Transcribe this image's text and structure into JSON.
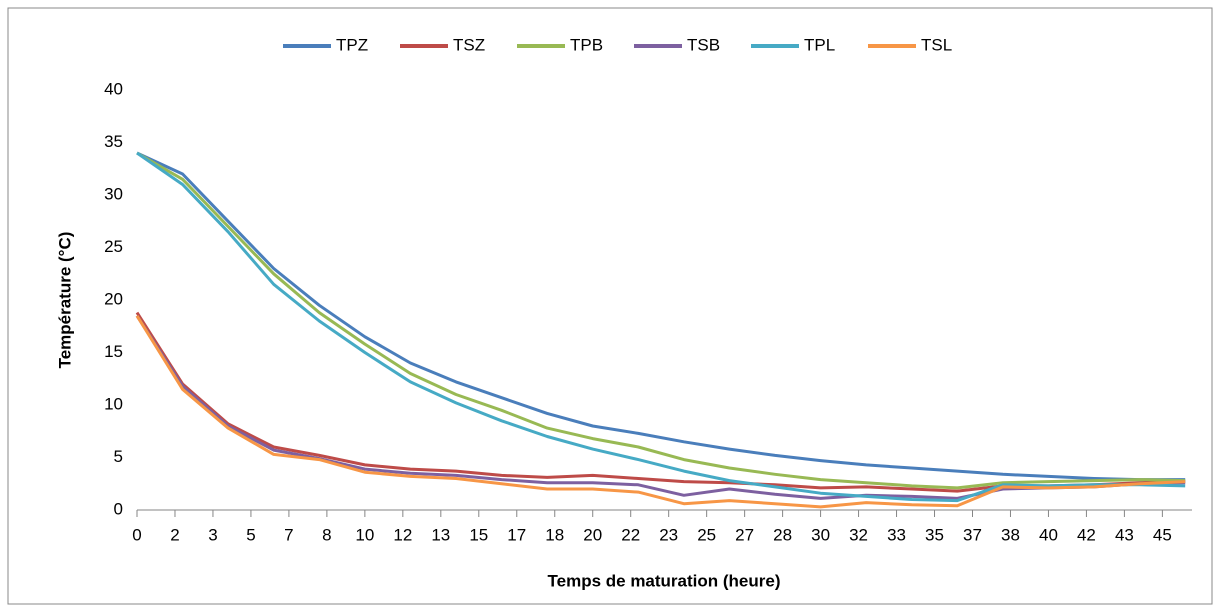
{
  "chart_data": {
    "type": "line",
    "x_label": "Temps de maturation (heure)",
    "y_label": "Température (°C)",
    "x": [
      0,
      2,
      4,
      6,
      8,
      10,
      12,
      14,
      16,
      18,
      20,
      22,
      24,
      26,
      28,
      30,
      32,
      34,
      36,
      38,
      40,
      42,
      44,
      46
    ],
    "series": [
      {
        "name": "TPZ",
        "color": "#4a7ebb",
        "values": [
          34,
          32,
          27.5,
          23,
          19.5,
          16.5,
          14,
          12.2,
          10.7,
          9.2,
          8,
          7.3,
          6.5,
          5.8,
          5.2,
          4.7,
          4.3,
          4,
          3.7,
          3.4,
          3.2,
          3,
          2.9,
          2.9
        ]
      },
      {
        "name": "TSZ",
        "color": "#be4b48",
        "values": [
          18.8,
          12,
          8.2,
          6,
          5.2,
          4.3,
          3.9,
          3.7,
          3.3,
          3.1,
          3.3,
          3,
          2.7,
          2.6,
          2.4,
          2.1,
          2.2,
          2,
          1.8,
          2.3,
          2.3,
          2.4,
          2.6,
          2.7
        ]
      },
      {
        "name": "TPB",
        "color": "#98b954",
        "values": [
          34,
          31.5,
          27,
          22.5,
          18.8,
          15.8,
          13,
          11,
          9.5,
          7.8,
          6.8,
          6,
          4.8,
          4,
          3.4,
          2.9,
          2.6,
          2.3,
          2.1,
          2.6,
          2.7,
          2.8,
          2.9,
          2.8
        ]
      },
      {
        "name": "TSB",
        "color": "#7d60a0",
        "values": [
          18.5,
          11.8,
          8,
          5.7,
          4.9,
          3.9,
          3.5,
          3.3,
          2.9,
          2.6,
          2.6,
          2.4,
          1.4,
          2,
          1.5,
          1.1,
          1.4,
          1.3,
          1.1,
          2,
          2.1,
          2.2,
          2.5,
          2.6
        ]
      },
      {
        "name": "TPL",
        "color": "#46aac5",
        "values": [
          34,
          31,
          26.5,
          21.5,
          18,
          15,
          12.2,
          10.2,
          8.5,
          7,
          5.8,
          4.8,
          3.7,
          2.8,
          2.2,
          1.6,
          1.3,
          1,
          0.9,
          2.4,
          2.3,
          2.4,
          2.4,
          2.3
        ]
      },
      {
        "name": "TSL",
        "color": "#f79646",
        "values": [
          18.5,
          11.5,
          7.8,
          5.3,
          4.8,
          3.6,
          3.2,
          3,
          2.5,
          2,
          2,
          1.7,
          0.6,
          0.9,
          0.6,
          0.3,
          0.7,
          0.5,
          0.4,
          2.2,
          2.1,
          2.2,
          2.5,
          2.7
        ]
      }
    ],
    "xlim": [
      0,
      46.3
    ],
    "xticks": [
      0,
      {
        "value": 1.6667,
        "label": "2"
      },
      {
        "value": 3.3333,
        "label": "3"
      },
      5,
      {
        "value": 6.6667,
        "label": "7"
      },
      {
        "value": 8.3333,
        "label": "8"
      },
      10,
      {
        "value": 11.6667,
        "label": "12"
      },
      {
        "value": 13.3333,
        "label": "13"
      },
      15,
      {
        "value": 16.6667,
        "label": "17"
      },
      {
        "value": 18.3333,
        "label": "18"
      },
      20,
      {
        "value": 21.6667,
        "label": "22"
      },
      {
        "value": 23.3333,
        "label": "23"
      },
      25,
      {
        "value": 26.6667,
        "label": "27"
      },
      {
        "value": 28.3333,
        "label": "28"
      },
      30,
      {
        "value": 31.6667,
        "label": "32"
      },
      {
        "value": 33.3333,
        "label": "33"
      },
      35,
      {
        "value": 36.6667,
        "label": "37"
      },
      {
        "value": 38.3333,
        "label": "38"
      },
      40,
      {
        "value": 41.6667,
        "label": "42"
      },
      {
        "value": 43.3333,
        "label": "43"
      },
      45
    ],
    "ylim": [
      0,
      40
    ],
    "yticks": [
      0,
      5,
      10,
      15,
      20,
      25,
      30,
      35,
      40
    ],
    "legend": "top"
  }
}
